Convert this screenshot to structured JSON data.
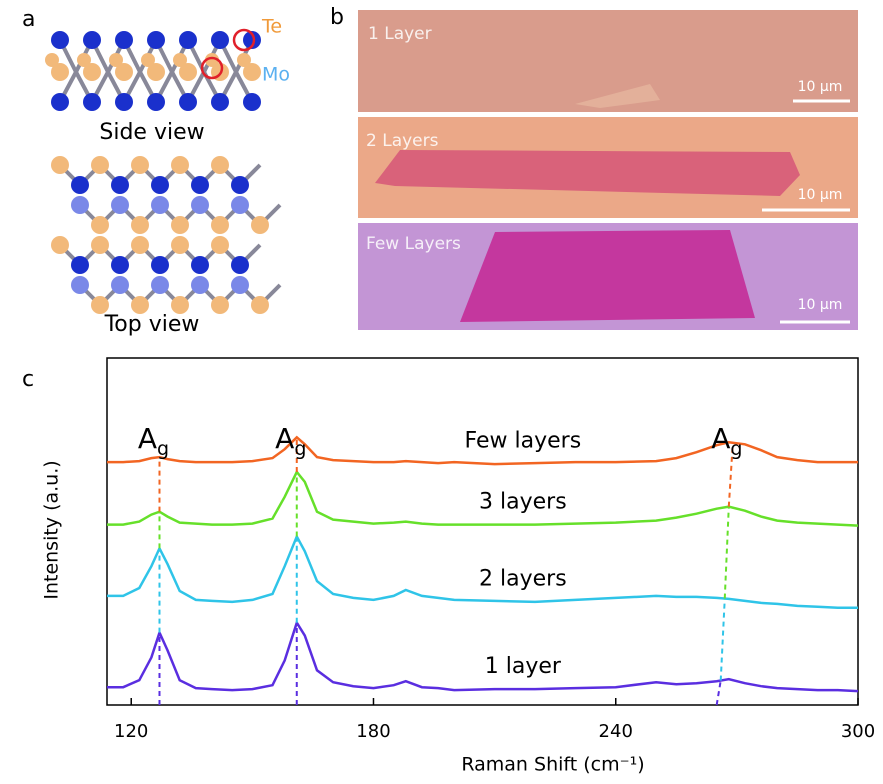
{
  "panels": {
    "a": {
      "label": "a",
      "te": "Te",
      "mo": "Mo",
      "side_view": "Side view",
      "top_view": "Top view"
    },
    "b": {
      "label": "b",
      "images": [
        {
          "title": "1 Layer",
          "scale": "10 μm"
        },
        {
          "title": "2 Layers",
          "scale": "10 μm"
        },
        {
          "title": "Few Layers",
          "scale": "10 μm"
        }
      ]
    },
    "c": {
      "label": "c"
    }
  },
  "chart_data": {
    "type": "line",
    "xlabel": "Raman Shift (cm⁻¹)",
    "ylabel": "Intensity (a.u.)",
    "xlim": [
      114,
      300
    ],
    "xticks": [
      120,
      180,
      240,
      300
    ],
    "ylim": [
      0,
      35
    ],
    "x": [
      114,
      118,
      122,
      125,
      127,
      129,
      132,
      136,
      140,
      145,
      150,
      155,
      158,
      161,
      163,
      166,
      170,
      175,
      180,
      185,
      188,
      192,
      196,
      200,
      210,
      220,
      230,
      240,
      250,
      255,
      260,
      265,
      268,
      272,
      276,
      280,
      285,
      290,
      295,
      300
    ],
    "series": [
      {
        "name": "Few layers",
        "color": "#f26522",
        "values": [
          24.5,
          24.5,
          24.6,
          24.9,
          25.0,
          24.8,
          24.6,
          24.5,
          24.5,
          24.5,
          24.6,
          24.9,
          25.8,
          27.0,
          26.3,
          25.0,
          24.7,
          24.6,
          24.5,
          24.5,
          24.6,
          24.5,
          24.4,
          24.5,
          24.3,
          24.4,
          24.5,
          24.5,
          24.6,
          24.9,
          25.5,
          26.2,
          26.5,
          26.3,
          25.7,
          25.0,
          24.7,
          24.5,
          24.5,
          24.5
        ]
      },
      {
        "name": "3 layers",
        "color": "#66e02a",
        "values": [
          18.2,
          18.2,
          18.5,
          19.2,
          19.5,
          19.0,
          18.4,
          18.3,
          18.2,
          18.2,
          18.3,
          18.8,
          21.0,
          23.5,
          22.5,
          19.5,
          18.7,
          18.5,
          18.3,
          18.4,
          18.5,
          18.3,
          18.2,
          18.2,
          18.2,
          18.2,
          18.3,
          18.4,
          18.6,
          18.9,
          19.3,
          19.8,
          20.0,
          19.6,
          19.0,
          18.6,
          18.4,
          18.3,
          18.2,
          18.1
        ]
      },
      {
        "name": "2 layers",
        "color": "#2fc4e8",
        "values": [
          11.0,
          11.0,
          11.8,
          14.0,
          15.8,
          14.2,
          11.5,
          10.6,
          10.5,
          10.4,
          10.6,
          11.2,
          14.0,
          17.0,
          15.5,
          12.5,
          11.2,
          10.8,
          10.6,
          11.0,
          11.6,
          11.0,
          10.8,
          10.6,
          10.5,
          10.4,
          10.6,
          10.8,
          11.0,
          10.9,
          10.9,
          10.8,
          10.7,
          10.5,
          10.3,
          10.2,
          10.0,
          9.9,
          9.8,
          9.8
        ]
      },
      {
        "name": "1 layer",
        "color": "#5a2ee0",
        "values": [
          1.8,
          1.8,
          2.5,
          4.8,
          7.3,
          5.5,
          2.5,
          1.7,
          1.6,
          1.5,
          1.6,
          2.0,
          4.5,
          8.3,
          7.0,
          3.5,
          2.3,
          1.9,
          1.7,
          2.0,
          2.4,
          1.8,
          1.7,
          1.5,
          1.6,
          1.6,
          1.7,
          1.8,
          2.3,
          2.1,
          2.2,
          2.4,
          2.6,
          2.2,
          1.9,
          1.7,
          1.6,
          1.5,
          1.5,
          1.4
        ]
      }
    ],
    "annotations": [
      {
        "text": "A",
        "subscript": "g",
        "x": [
          127,
          127
        ]
      },
      {
        "text": "A",
        "subscript": "g",
        "x": [
          161,
          161
        ]
      },
      {
        "text": "A",
        "subscript": "g",
        "x": [
          265,
          269
        ]
      }
    ]
  }
}
